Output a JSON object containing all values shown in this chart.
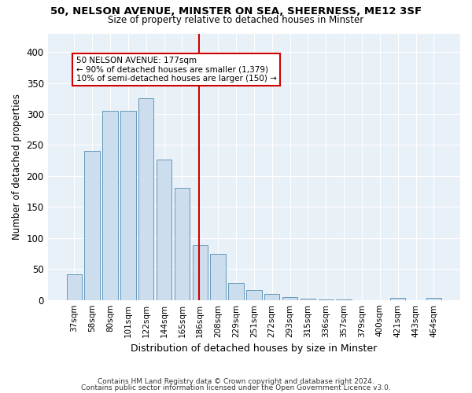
{
  "title_line1": "50, NELSON AVENUE, MINSTER ON SEA, SHEERNESS, ME12 3SF",
  "title_line2": "Size of property relative to detached houses in Minster",
  "xlabel": "Distribution of detached houses by size in Minster",
  "ylabel": "Number of detached properties",
  "categories": [
    "37sqm",
    "58sqm",
    "80sqm",
    "101sqm",
    "122sqm",
    "144sqm",
    "165sqm",
    "186sqm",
    "208sqm",
    "229sqm",
    "251sqm",
    "272sqm",
    "293sqm",
    "315sqm",
    "336sqm",
    "357sqm",
    "379sqm",
    "400sqm",
    "421sqm",
    "443sqm",
    "464sqm"
  ],
  "values": [
    42,
    240,
    305,
    305,
    325,
    227,
    181,
    88,
    74,
    27,
    16,
    10,
    5,
    2,
    1,
    1,
    0,
    0,
    4,
    0,
    4
  ],
  "bar_color": "#ccdded",
  "bar_edge_color": "#6699bb",
  "annotation_line1": "50 NELSON AVENUE: 177sqm",
  "annotation_line2": "← 90% of detached houses are smaller (1,379)",
  "annotation_line3": "10% of semi-detached houses are larger (150) →",
  "vline_color": "#cc0000",
  "annotation_box_edge": "#cc0000",
  "ylim": [
    0,
    430
  ],
  "yticks": [
    0,
    50,
    100,
    150,
    200,
    250,
    300,
    350,
    400
  ],
  "footnote_line1": "Contains HM Land Registry data © Crown copyright and database right 2024.",
  "footnote_line2": "Contains public sector information licensed under the Open Government Licence v3.0.",
  "bg_color": "#ffffff",
  "plot_bg_color": "#e8f0f8",
  "grid_color": "#ffffff"
}
